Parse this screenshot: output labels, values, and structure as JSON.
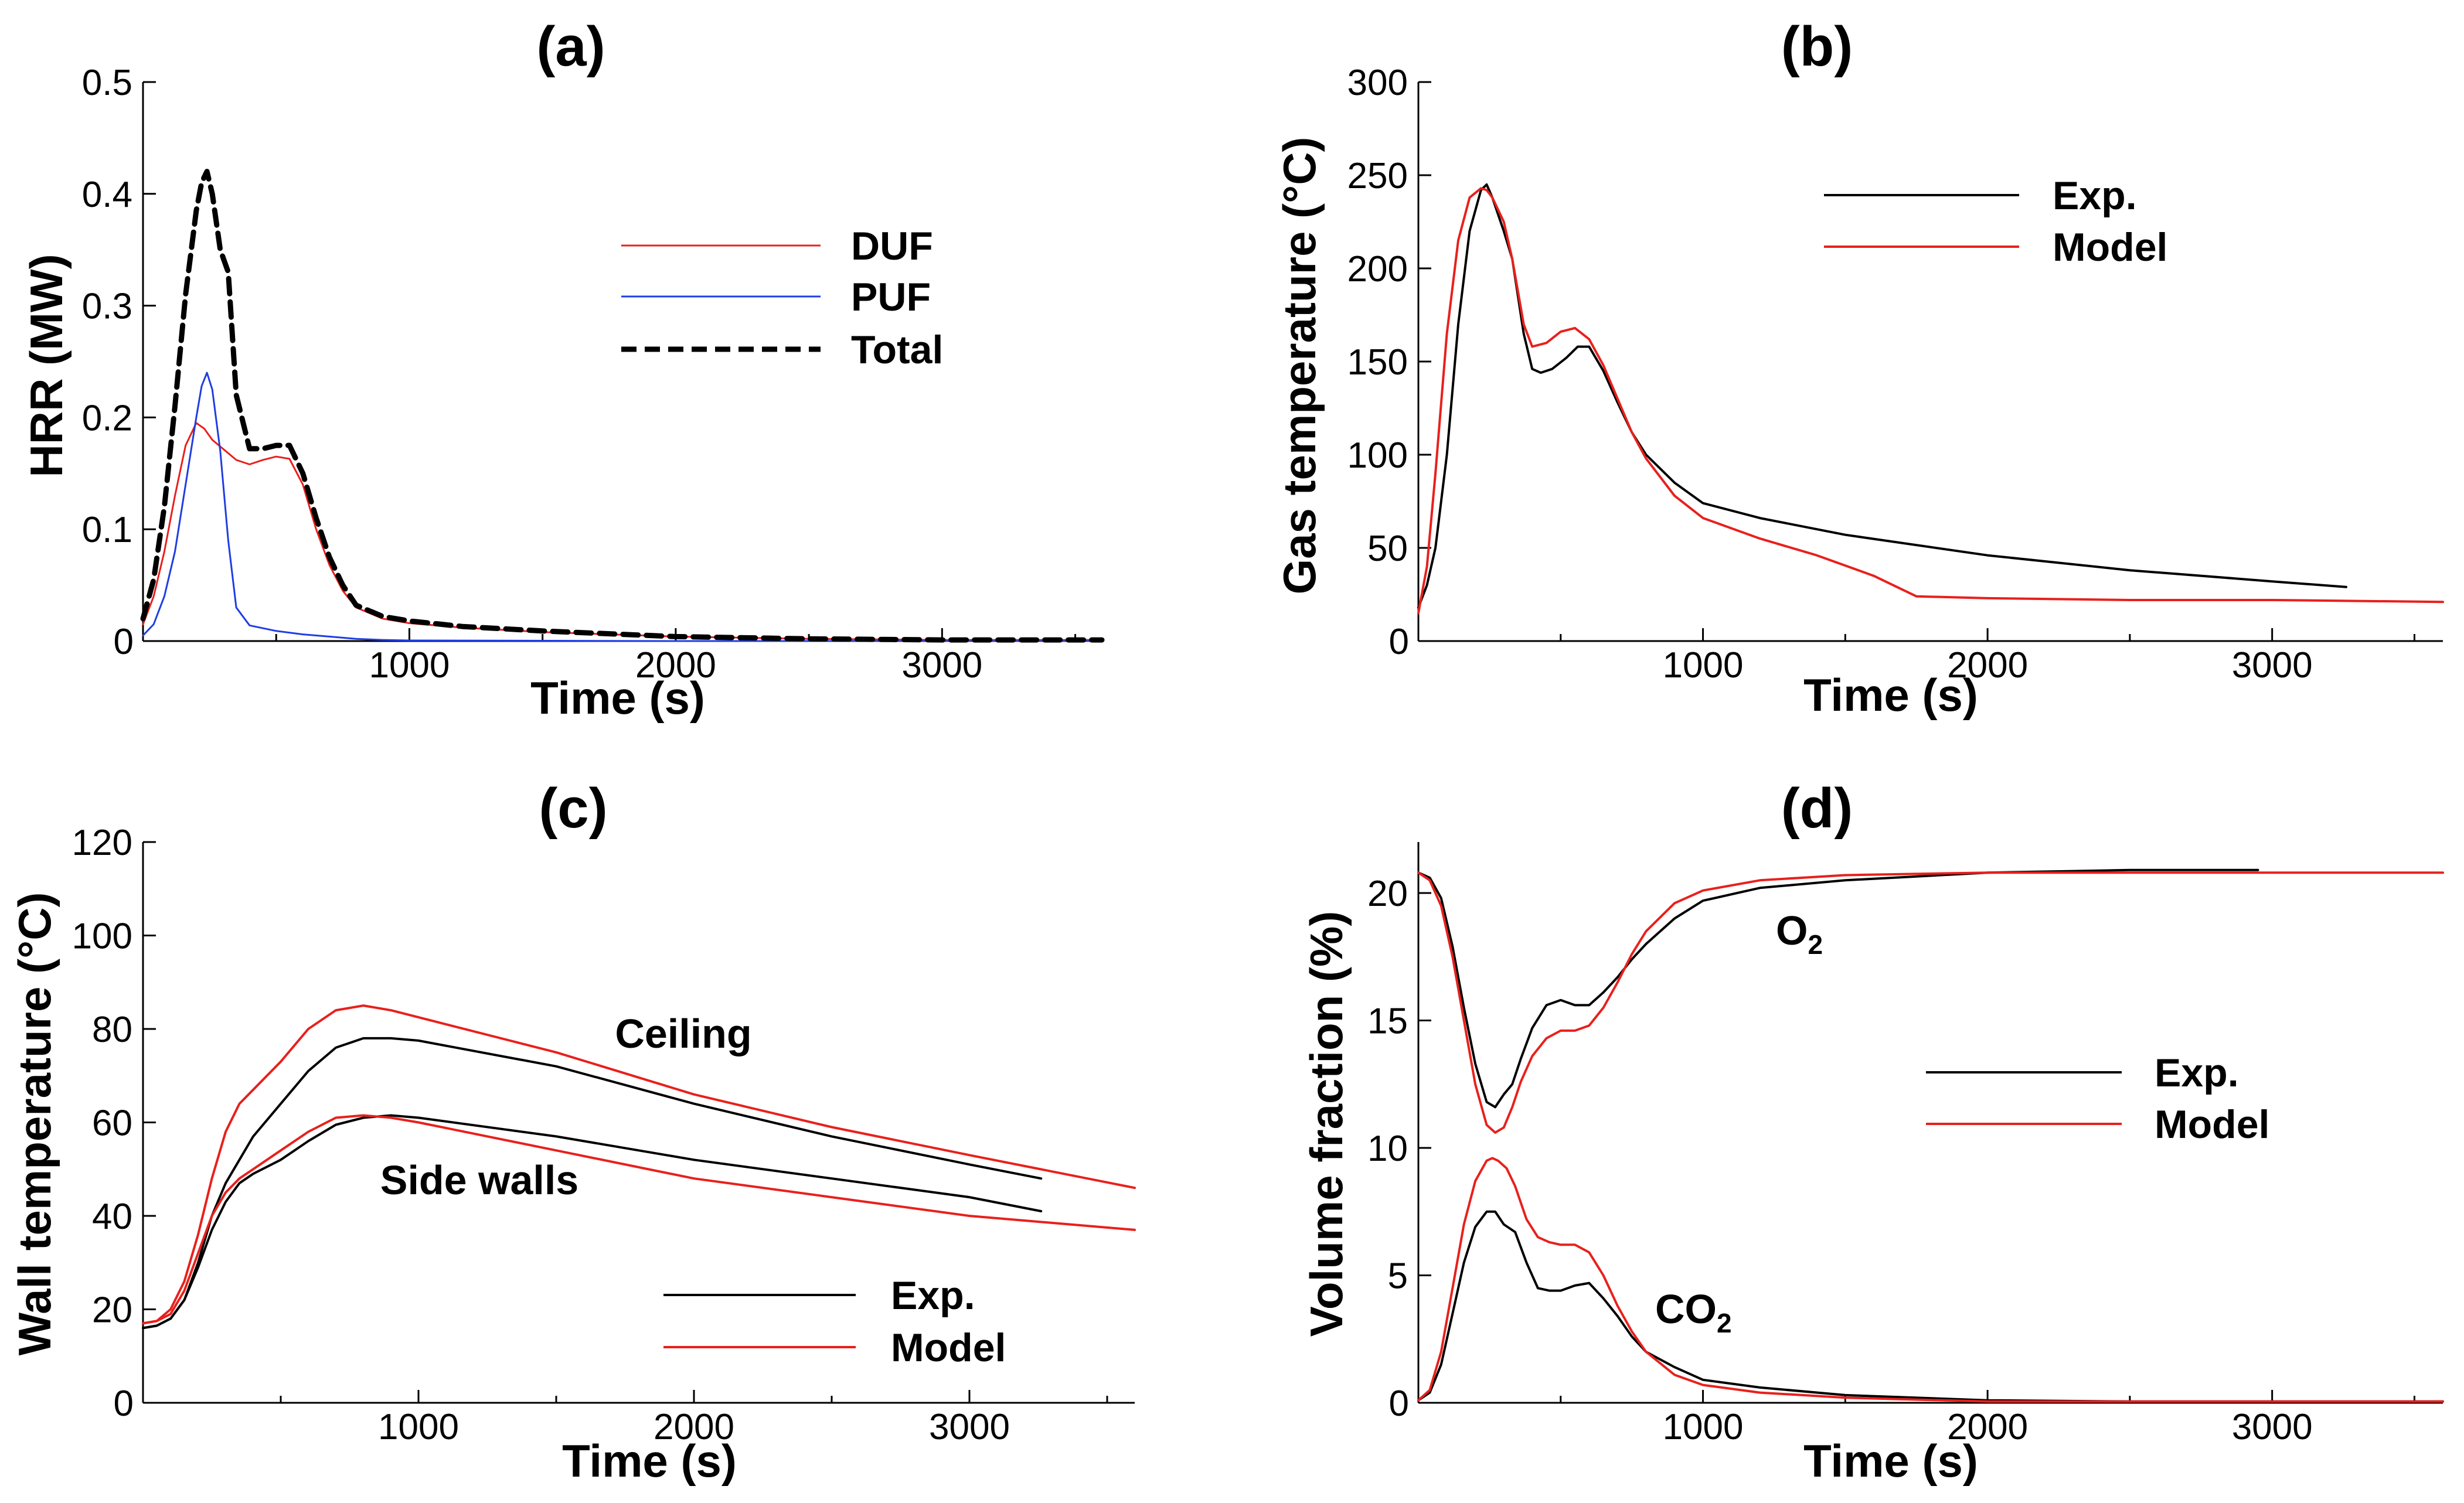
{
  "chart_data": [
    {
      "id": "a",
      "type": "line",
      "title": "(a)",
      "xlabel": "Time (s)",
      "ylabel": "HRR (MW)",
      "xlim": [
        0,
        3600
      ],
      "ylim": [
        0,
        0.5
      ],
      "xticks": [
        0,
        1000,
        2000,
        3000
      ],
      "xtick_labels": [
        "0",
        "1000",
        "2000",
        "3000"
      ],
      "yticks": [
        0.1,
        0.2,
        0.3,
        0.4,
        0.5
      ],
      "ytick_labels": [
        "0.1",
        "0.2",
        "0.3",
        "0.4",
        "0.5"
      ],
      "origin_label": "0",
      "legend": {
        "position": "top-right"
      },
      "series": [
        {
          "name": "DUF",
          "color": "#e8201c",
          "width": 3,
          "dash": "",
          "x": [
            0,
            40,
            80,
            120,
            160,
            200,
            230,
            260,
            300,
            350,
            400,
            450,
            500,
            550,
            600,
            650,
            700,
            750,
            800,
            900,
            1000,
            1200,
            1500,
            2000,
            2500,
            3000,
            3600
          ],
          "y": [
            0.015,
            0.04,
            0.08,
            0.13,
            0.175,
            0.195,
            0.19,
            0.18,
            0.172,
            0.162,
            0.158,
            0.162,
            0.165,
            0.163,
            0.14,
            0.1,
            0.068,
            0.045,
            0.03,
            0.02,
            0.016,
            0.012,
            0.008,
            0.004,
            0.002,
            0.001,
            0.001
          ]
        },
        {
          "name": "PUF",
          "color": "#1f3de3",
          "width": 3,
          "dash": "",
          "x": [
            0,
            40,
            80,
            120,
            160,
            200,
            220,
            240,
            260,
            290,
            320,
            350,
            400,
            500,
            600,
            700,
            800,
            900,
            1000,
            2000,
            3600
          ],
          "y": [
            0.005,
            0.015,
            0.04,
            0.08,
            0.14,
            0.2,
            0.228,
            0.24,
            0.225,
            0.17,
            0.09,
            0.03,
            0.014,
            0.009,
            0.006,
            0.004,
            0.002,
            0.001,
            0.0005,
            0.0,
            0.0
          ]
        },
        {
          "name": "Total",
          "color": "#000000",
          "width": 9,
          "dash": "26,14",
          "x": [
            0,
            40,
            80,
            120,
            160,
            200,
            220,
            240,
            260,
            290,
            320,
            350,
            400,
            450,
            500,
            550,
            600,
            650,
            700,
            750,
            800,
            900,
            1000,
            1200,
            1500,
            2000,
            2500,
            3000,
            3600
          ],
          "y": [
            0.02,
            0.055,
            0.12,
            0.21,
            0.31,
            0.385,
            0.41,
            0.42,
            0.4,
            0.35,
            0.33,
            0.22,
            0.172,
            0.172,
            0.175,
            0.175,
            0.15,
            0.11,
            0.075,
            0.05,
            0.032,
            0.022,
            0.018,
            0.013,
            0.009,
            0.004,
            0.002,
            0.001,
            0.001
          ]
        }
      ]
    },
    {
      "id": "b",
      "type": "line",
      "title": "(b)",
      "xlabel": "Time (s)",
      "ylabel": "Gas temperature (°C)",
      "xlim": [
        0,
        3600
      ],
      "ylim": [
        0,
        300
      ],
      "xticks": [
        0,
        1000,
        2000,
        3000
      ],
      "xtick_labels": [
        "0",
        "1000",
        "2000",
        "3000"
      ],
      "yticks": [
        50,
        100,
        150,
        200,
        250,
        300
      ],
      "ytick_labels": [
        "50",
        "100",
        "150",
        "200",
        "250",
        "300"
      ],
      "origin_label": "0",
      "legend": {
        "position": "top-right"
      },
      "series": [
        {
          "name": "Exp.",
          "color": "#000000",
          "width": 4,
          "dash": "",
          "x": [
            0,
            30,
            60,
            100,
            140,
            180,
            220,
            240,
            260,
            300,
            330,
            370,
            400,
            430,
            470,
            520,
            560,
            600,
            650,
            700,
            750,
            800,
            900,
            1000,
            1200,
            1500,
            2000,
            2500,
            3000,
            3260
          ],
          "y": [
            18,
            30,
            50,
            100,
            170,
            220,
            242,
            245,
            238,
            220,
            205,
            165,
            146,
            144,
            146,
            152,
            158,
            158,
            145,
            128,
            112,
            100,
            85,
            74,
            66,
            57,
            46,
            38,
            32,
            29
          ]
        },
        {
          "name": "Model",
          "color": "#e8201c",
          "width": 4,
          "dash": "",
          "x": [
            0,
            30,
            60,
            100,
            140,
            180,
            220,
            240,
            260,
            300,
            330,
            370,
            400,
            450,
            500,
            550,
            600,
            650,
            700,
            750,
            800,
            900,
            1000,
            1200,
            1400,
            1600,
            1750,
            2000,
            2500,
            3000,
            3600
          ],
          "y": [
            15,
            40,
            90,
            165,
            215,
            238,
            243,
            242,
            238,
            225,
            205,
            170,
            158,
            160,
            166,
            168,
            162,
            148,
            130,
            112,
            98,
            78,
            66,
            55,
            46,
            35,
            24,
            23,
            22,
            22,
            21
          ]
        }
      ]
    },
    {
      "id": "c",
      "type": "line",
      "title": "(c)",
      "xlabel": "Time (s)",
      "ylabel": "Wall temperature (°C)",
      "xlim": [
        0,
        3600
      ],
      "ylim": [
        0,
        120
      ],
      "xticks": [
        0,
        1000,
        2000,
        3000
      ],
      "xtick_labels": [
        "0",
        "1000",
        "2000",
        "3000"
      ],
      "yticks": [
        20,
        40,
        60,
        80,
        100,
        120
      ],
      "ytick_labels": [
        "20",
        "40",
        "60",
        "80",
        "100",
        "120"
      ],
      "origin_label": "0",
      "legend": {
        "position": "bottom-right"
      },
      "annotations": [
        {
          "text": "Ceiling",
          "x": 1950,
          "y": 79
        },
        {
          "text": "Side walls",
          "x": 1060,
          "y": 46
        }
      ],
      "series": [
        {
          "name": "Exp.",
          "color": "#000000",
          "width": 4,
          "dash": "",
          "x": [
            0,
            50,
            100,
            150,
            200,
            250,
            300,
            350,
            400,
            500,
            600,
            700,
            800,
            900,
            1000,
            1500,
            2000,
            2500,
            3000,
            3260
          ],
          "y": [
            16,
            16.5,
            18,
            22,
            30,
            40,
            47,
            52,
            57,
            64,
            71,
            76,
            78,
            78,
            77.5,
            72,
            64,
            57,
            51,
            48
          ]
        },
        {
          "name": "Exp. (side walls)",
          "color": "#000000",
          "width": 4,
          "dash": "",
          "x": [
            0,
            50,
            100,
            150,
            200,
            250,
            300,
            350,
            400,
            500,
            600,
            700,
            800,
            900,
            1000,
            1500,
            2000,
            2500,
            3000,
            3260
          ],
          "y": [
            16,
            16.5,
            18,
            22,
            29,
            37,
            43,
            47,
            49,
            52,
            56,
            59.5,
            61,
            61.5,
            61,
            57,
            52,
            48,
            44,
            41
          ]
        },
        {
          "name": "Model",
          "color": "#e8201c",
          "width": 4,
          "dash": "",
          "x": [
            0,
            50,
            100,
            150,
            200,
            250,
            300,
            350,
            400,
            500,
            600,
            700,
            800,
            900,
            1000,
            1500,
            2000,
            2500,
            3000,
            3600
          ],
          "y": [
            17,
            17.5,
            20,
            26,
            36,
            48,
            58,
            64,
            67,
            73,
            80,
            84,
            85,
            84,
            82.5,
            75,
            66,
            59,
            53,
            46
          ]
        },
        {
          "name": "Model (side walls)",
          "color": "#e8201c",
          "width": 4,
          "dash": "",
          "x": [
            0,
            50,
            100,
            150,
            200,
            250,
            300,
            350,
            400,
            500,
            600,
            700,
            800,
            900,
            1000,
            1500,
            2000,
            2500,
            3000,
            3600
          ],
          "y": [
            17,
            17.5,
            19,
            24,
            32,
            40,
            45,
            48,
            50,
            54,
            58,
            61,
            61.5,
            61,
            60,
            54,
            48,
            44,
            40,
            37
          ]
        }
      ]
    },
    {
      "id": "d",
      "type": "line",
      "title": "(d)",
      "xlabel": "Time (s)",
      "ylabel": "Volume fraction (%)",
      "xlim": [
        0,
        3600
      ],
      "ylim": [
        0,
        22
      ],
      "xticks": [
        0,
        1000,
        2000,
        3000
      ],
      "xtick_labels": [
        "0",
        "1000",
        "2000",
        "3000"
      ],
      "yticks": [
        5,
        10,
        15,
        20
      ],
      "ytick_labels": [
        "5",
        "10",
        "15",
        "20"
      ],
      "origin_label": "0",
      "legend": {
        "position": "right"
      },
      "annotations": [
        {
          "text": "O",
          "sub": "2",
          "x": 1260,
          "y": 18.4
        },
        {
          "text": "CO",
          "sub": "2",
          "x": 850,
          "y": 3.2
        }
      ],
      "series": [
        {
          "name": "Exp.",
          "color": "#000000",
          "width": 4,
          "dash": "",
          "x": [
            0,
            40,
            80,
            120,
            160,
            200,
            240,
            270,
            300,
            330,
            360,
            400,
            450,
            500,
            550,
            600,
            650,
            700,
            750,
            800,
            900,
            1000,
            1200,
            1500,
            2000,
            2500,
            2950
          ],
          "y": [
            20.8,
            20.6,
            19.8,
            17.9,
            15.5,
            13.3,
            11.8,
            11.6,
            12.1,
            12.5,
            13.5,
            14.7,
            15.6,
            15.8,
            15.6,
            15.6,
            16.1,
            16.7,
            17.4,
            18.0,
            19.0,
            19.7,
            20.2,
            20.5,
            20.8,
            20.9,
            20.9
          ]
        },
        {
          "name": "Exp. (CO2)",
          "color": "#000000",
          "width": 4,
          "dash": "",
          "x": [
            0,
            40,
            80,
            120,
            160,
            200,
            240,
            270,
            300,
            340,
            380,
            420,
            460,
            500,
            550,
            600,
            650,
            700,
            750,
            800,
            900,
            1000,
            1200,
            1500,
            2000,
            2500,
            3000,
            3600
          ],
          "y": [
            0.1,
            0.4,
            1.5,
            3.5,
            5.5,
            6.9,
            7.5,
            7.5,
            7.0,
            6.7,
            5.5,
            4.5,
            4.4,
            4.4,
            4.6,
            4.7,
            4.1,
            3.4,
            2.6,
            2.0,
            1.4,
            0.9,
            0.6,
            0.3,
            0.1,
            0.05,
            0.05,
            0.05
          ]
        },
        {
          "name": "Model",
          "color": "#e8201c",
          "width": 4,
          "dash": "",
          "x": [
            0,
            40,
            80,
            120,
            160,
            200,
            240,
            270,
            300,
            330,
            360,
            400,
            450,
            500,
            550,
            600,
            650,
            700,
            750,
            800,
            900,
            1000,
            1200,
            1500,
            2000,
            2500,
            3000,
            3600
          ],
          "y": [
            20.8,
            20.5,
            19.5,
            17.5,
            15.0,
            12.5,
            10.9,
            10.6,
            10.8,
            11.6,
            12.6,
            13.6,
            14.3,
            14.6,
            14.6,
            14.8,
            15.5,
            16.5,
            17.6,
            18.5,
            19.6,
            20.1,
            20.5,
            20.7,
            20.8,
            20.8,
            20.8,
            20.8
          ]
        },
        {
          "name": "Model (CO2)",
          "color": "#e8201c",
          "width": 4,
          "dash": "",
          "x": [
            0,
            40,
            80,
            120,
            160,
            200,
            240,
            260,
            280,
            310,
            340,
            380,
            420,
            460,
            500,
            550,
            600,
            650,
            700,
            750,
            800,
            900,
            1000,
            1200,
            1500,
            2000,
            2500,
            3000,
            3600
          ],
          "y": [
            0.1,
            0.5,
            2.0,
            4.5,
            7.0,
            8.7,
            9.5,
            9.6,
            9.5,
            9.2,
            8.5,
            7.2,
            6.5,
            6.3,
            6.2,
            6.2,
            5.9,
            5.0,
            3.8,
            2.8,
            2.0,
            1.1,
            0.7,
            0.4,
            0.2,
            0.05,
            0.05,
            0.05,
            0.05
          ]
        }
      ]
    }
  ]
}
